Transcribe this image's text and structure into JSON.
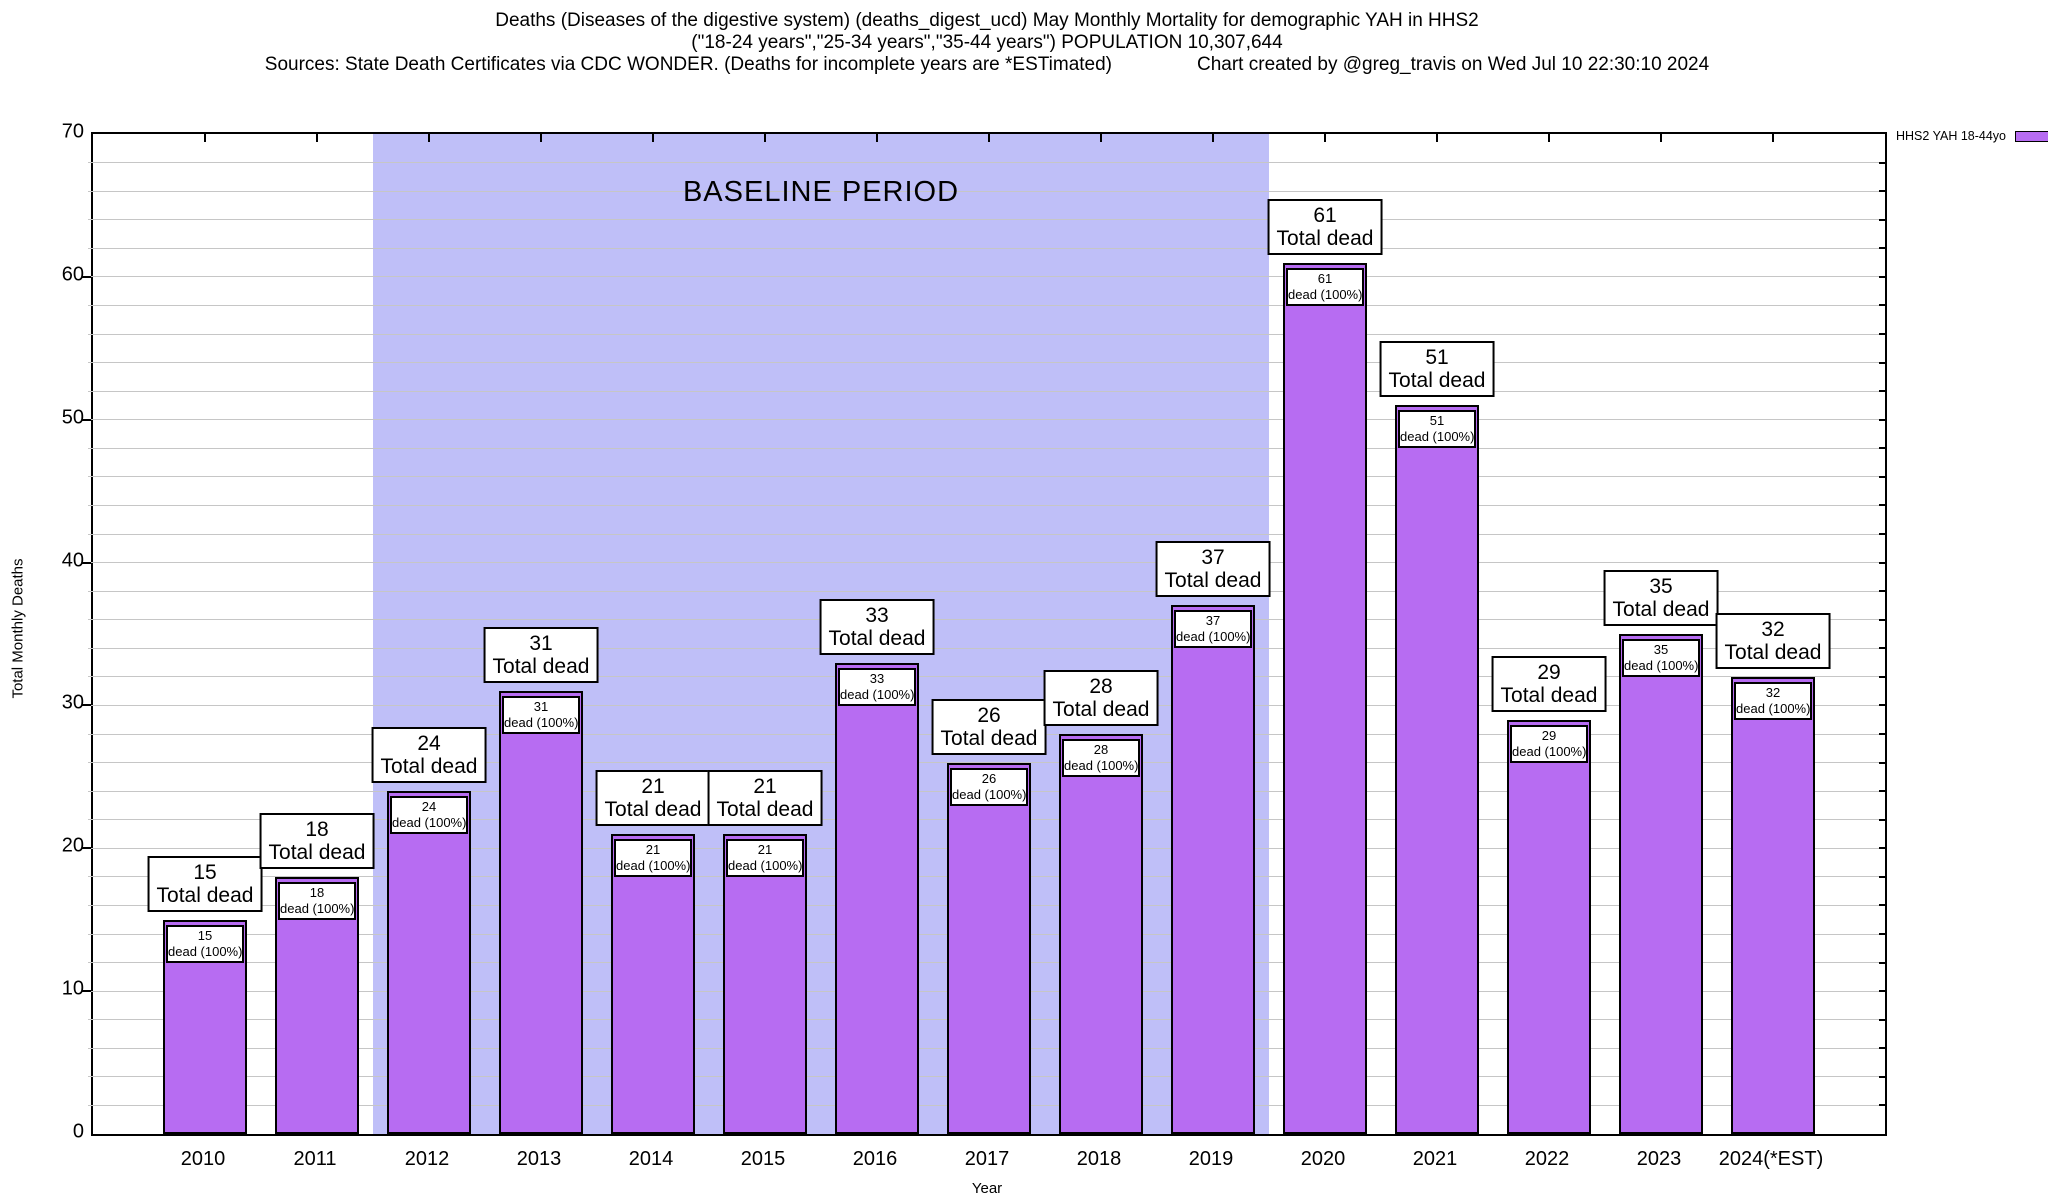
{
  "title": {
    "line1": "Deaths (Diseases of the digestive system) (deaths_digest_ucd) May Monthly Mortality for demographic YAH in HHS2",
    "line2": "(\"18-24 years\",\"25-34 years\",\"35-44 years\") POPULATION 10,307,644",
    "line3_left": "Sources: State Death Certificates via CDC WONDER. (Deaths for incomplete years are *ESTimated)",
    "line3_right": "Chart created by @greg_travis on Wed Jul 10 22:30:10 2024"
  },
  "legend": {
    "label": "HHS2 YAH 18-44yo"
  },
  "axes": {
    "ylabel": "Total Monthly Deaths",
    "xlabel": "Year"
  },
  "chart_data": {
    "type": "bar",
    "title": "Deaths (Diseases of the digestive system) (deaths_digest_ucd) May Monthly Mortality for demographic YAH in HHS2",
    "subtitle": "(\"18-24 years\",\"25-34 years\",\"35-44 years\") POPULATION 10,307,644",
    "categories": [
      "2010",
      "2011",
      "2012",
      "2013",
      "2014",
      "2015",
      "2016",
      "2017",
      "2018",
      "2019",
      "2020",
      "2021",
      "2022",
      "2023",
      "2024(*EST)"
    ],
    "values": [
      15,
      18,
      24,
      31,
      21,
      21,
      33,
      26,
      28,
      37,
      61,
      51,
      29,
      35,
      32
    ],
    "bar_top_label_suffix": "Total dead",
    "bar_inner_label_suffix": "dead (100%)",
    "xlabel": "Year",
    "ylabel": "Total Monthly Deaths",
    "ylim": [
      0,
      70
    ],
    "ytick_major_interval": 10,
    "grid_interval": 2,
    "grid_on": true,
    "legend_position": "top-right",
    "legend_entries": [
      {
        "name": "HHS2 YAH 18-44yo",
        "color": "#b76cf2"
      }
    ],
    "baseline_region": {
      "label": "BASELINE PERIOD",
      "from_category": "2012",
      "to_category": "2019",
      "fill": "#bfbff8"
    },
    "colors": {
      "bar_fill": "#b76cf2",
      "bar_border": "#000000",
      "grid": "#c6c6c6",
      "baseline_fill": "#bfbff8"
    }
  }
}
